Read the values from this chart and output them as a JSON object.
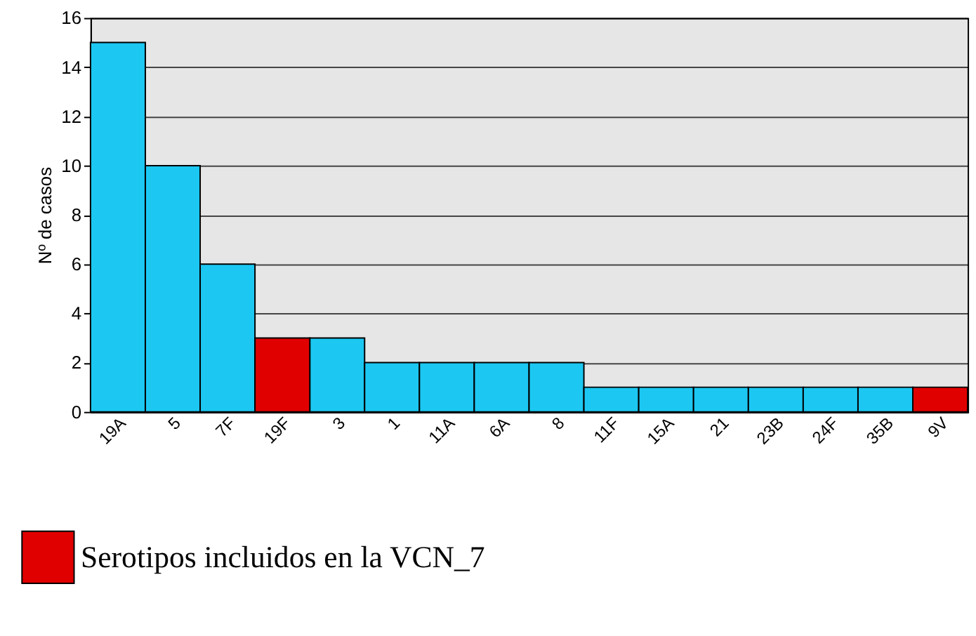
{
  "chart_data": {
    "type": "bar",
    "ylabel": "Nº de casos",
    "categories": [
      "19A",
      "5",
      "7F",
      "19F",
      "3",
      "1",
      "11A",
      "6A",
      "8",
      "11F",
      "15A",
      "21",
      "23B",
      "24F",
      "35B",
      "9V"
    ],
    "series": [
      {
        "color": "#1cc8f2",
        "values": [
          15,
          10,
          6,
          null,
          3,
          2,
          2,
          2,
          2,
          1,
          1,
          1,
          1,
          1,
          1,
          null
        ]
      },
      {
        "name": "Serotipos incluidos en la VCN_7",
        "color": "#e00000",
        "values": [
          null,
          null,
          null,
          3,
          null,
          null,
          null,
          null,
          null,
          null,
          null,
          null,
          null,
          null,
          null,
          1
        ]
      }
    ],
    "ylim": [
      0,
      16
    ],
    "yticks": [
      0,
      2,
      4,
      6,
      8,
      10,
      12,
      14,
      16
    ],
    "grid": "y",
    "legend": "bottom left"
  }
}
